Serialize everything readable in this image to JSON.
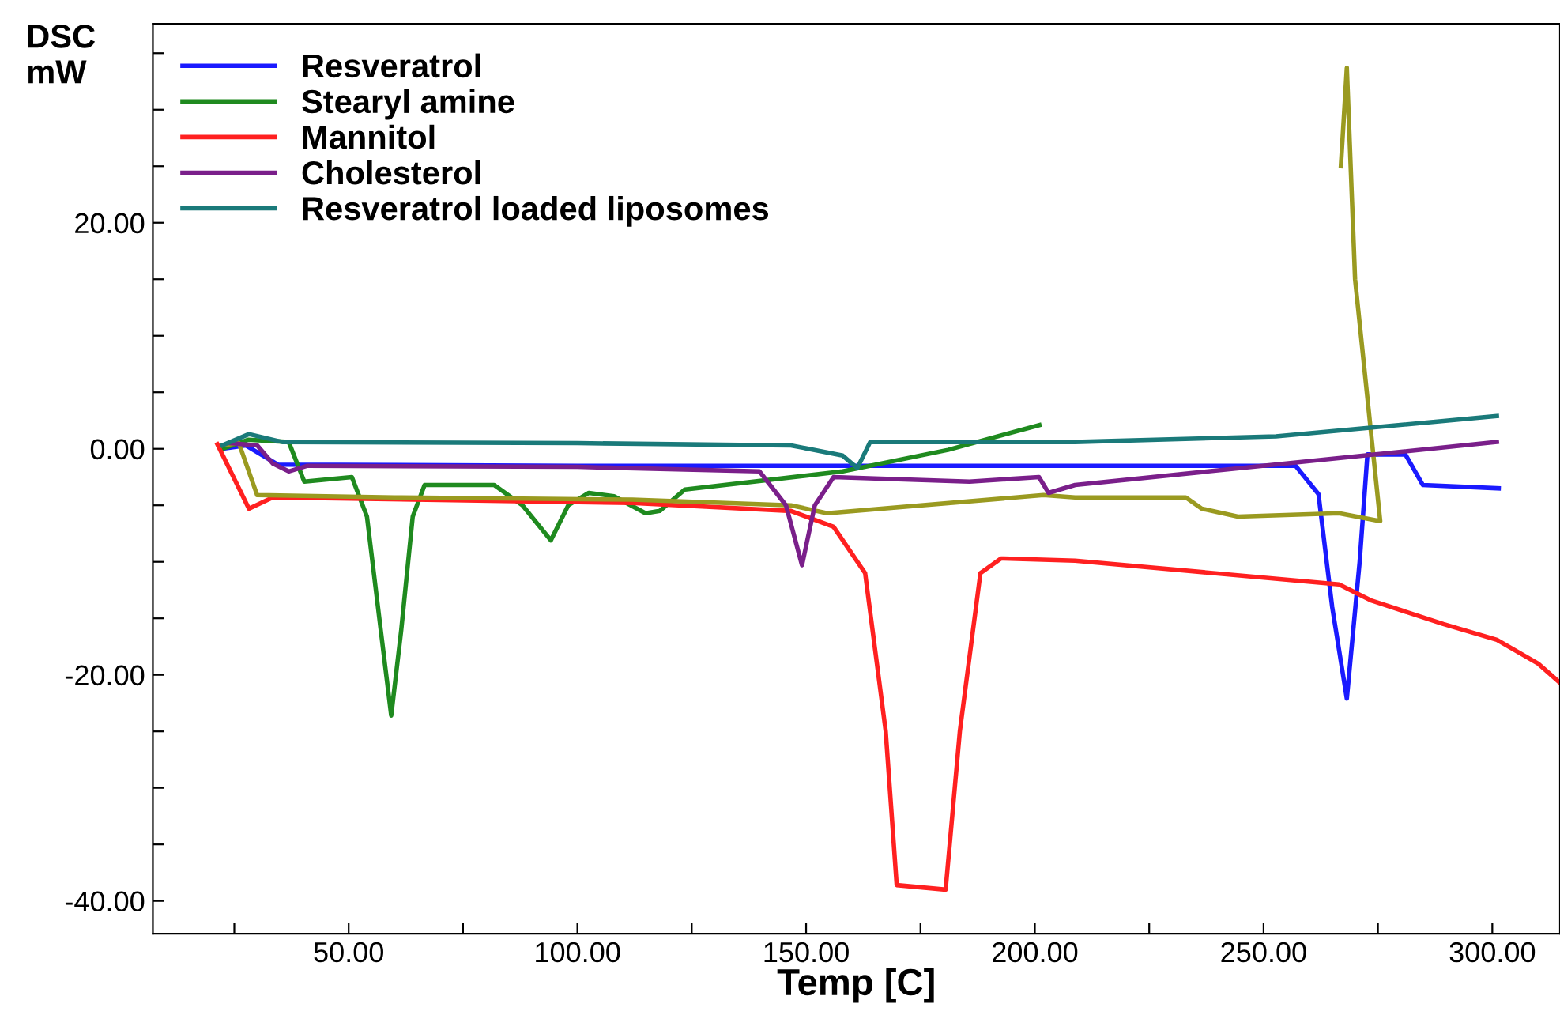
{
  "chart_data": {
    "type": "line",
    "xlabel": "Temp [C]",
    "ylabel": "DSC\nmW",
    "xlim": [
      7.2,
      314.8
    ],
    "ylim": [
      -42.9,
      37.6
    ],
    "xticks": [
      {
        "value": 25,
        "label": null
      },
      {
        "value": 50,
        "label": "50.00"
      },
      {
        "value": 75,
        "label": null
      },
      {
        "value": 100,
        "label": "100.00"
      },
      {
        "value": 125,
        "label": null
      },
      {
        "value": 150,
        "label": "150.00"
      },
      {
        "value": 175,
        "label": null
      },
      {
        "value": 200,
        "label": "200.00"
      },
      {
        "value": 225,
        "label": null
      },
      {
        "value": 250,
        "label": "250.00"
      },
      {
        "value": 275,
        "label": null
      },
      {
        "value": 300,
        "label": "300.00"
      }
    ],
    "yticks": [
      {
        "value": -40,
        "label": "-40.00"
      },
      {
        "value": -35,
        "label": null
      },
      {
        "value": -30,
        "label": null
      },
      {
        "value": -25,
        "label": null
      },
      {
        "value": -20,
        "label": "-20.00"
      },
      {
        "value": -15,
        "label": null
      },
      {
        "value": -10,
        "label": null
      },
      {
        "value": -5,
        "label": null
      },
      {
        "value": 0,
        "label": "0.00"
      },
      {
        "value": 5,
        "label": null
      },
      {
        "value": 10,
        "label": null
      },
      {
        "value": 15,
        "label": null
      },
      {
        "value": 20,
        "label": "20.00"
      },
      {
        "value": 25,
        "label": null
      },
      {
        "value": 30,
        "label": null
      },
      {
        "value": 35,
        "label": null
      }
    ],
    "grid": false,
    "legend": "top left",
    "marker": "none",
    "line_style": "solid",
    "series": [
      {
        "name": "Resveratrol",
        "color": "#1a1aff",
        "x": [
          22.4,
          27.5,
          34.5,
          100,
          200,
          257,
          262,
          265,
          268.2,
          271,
          272.7,
          281,
          284.8,
          301.4
        ],
        "values": [
          0,
          0.3,
          -1.4,
          -1.5,
          -1.5,
          -1.5,
          -4,
          -14,
          -22.1,
          -10,
          -0.5,
          -0.5,
          -3.2,
          -3.5
        ]
      },
      {
        "name": "Stearyl amine",
        "color": "#1f8a1f",
        "x": [
          22.4,
          28,
          36.9,
          40.3,
          50.7,
          54,
          57,
          59.3,
          61.5,
          64,
          66.6,
          81.8,
          88,
          94.2,
          98,
          102.5,
          108,
          114.9,
          118,
          123.5,
          158,
          181,
          201
        ],
        "values": [
          0,
          0.8,
          0.6,
          -2.9,
          -2.5,
          -6,
          -16,
          -23.6,
          -16,
          -6,
          -3.2,
          -3.2,
          -5,
          -8.1,
          -5,
          -3.9,
          -4.2,
          -5.7,
          -5.5,
          -3.6,
          -2.0,
          -0.1,
          2.1
        ]
      },
      {
        "name": "Mannitol",
        "color": "#ff2020",
        "x": [
          21.3,
          28.2,
          33.4,
          112,
          146.7,
          156,
          162.9,
          167.4,
          169.8,
          180.5,
          183.6,
          188.1,
          192.6,
          208.8,
          266.5,
          273.4,
          289.3,
          301,
          310,
          314.8
        ],
        "values": [
          0.4,
          -5.3,
          -4.3,
          -4.8,
          -5.5,
          -6.9,
          -11,
          -25,
          -38.6,
          -39,
          -25,
          -11,
          -9.7,
          -9.9,
          -12,
          -13.4,
          -15.5,
          -16.9,
          -19,
          -20.7
        ]
      },
      {
        "color": "#9a9a20",
        "x": [
          22.4,
          26,
          30,
          60,
          112,
          146.7,
          154.6,
          201.9,
          208.8,
          233,
          236.5,
          244.4,
          266.5,
          275.5,
          270,
          268.2,
          266.9
        ],
        "values": [
          0.3,
          0.5,
          -4.1,
          -4.3,
          -4.5,
          -5.0,
          -5.7,
          -4.1,
          -4.3,
          -4.3,
          -5.3,
          -6.0,
          -5.7,
          -6.4,
          15,
          33.7,
          25
        ]
      },
      {
        "name": "Cholesterol",
        "color": "#7a1f8a",
        "x": [
          24,
          30,
          33.4,
          36.9,
          41,
          100,
          139.8,
          145.6,
          149.1,
          151.9,
          156,
          185.7,
          200.9,
          203,
          208.8,
          301
        ],
        "values": [
          0.5,
          0.3,
          -1.3,
          -2.0,
          -1.5,
          -1.6,
          -2.0,
          -5.0,
          -10.3,
          -5.0,
          -2.5,
          -2.9,
          -2.5,
          -3.9,
          -3.2,
          0.6
        ]
      },
      {
        "name": "Resveratrol loaded liposomes",
        "color": "#1a7a7a",
        "x": [
          22.4,
          28.2,
          35.5,
          100,
          146.7,
          158,
          161.2,
          164,
          208.8,
          252.7,
          301
        ],
        "values": [
          0.3,
          1.3,
          0.6,
          0.5,
          0.3,
          -0.6,
          -1.7,
          0.6,
          0.6,
          1.1,
          2.9
        ]
      }
    ]
  }
}
